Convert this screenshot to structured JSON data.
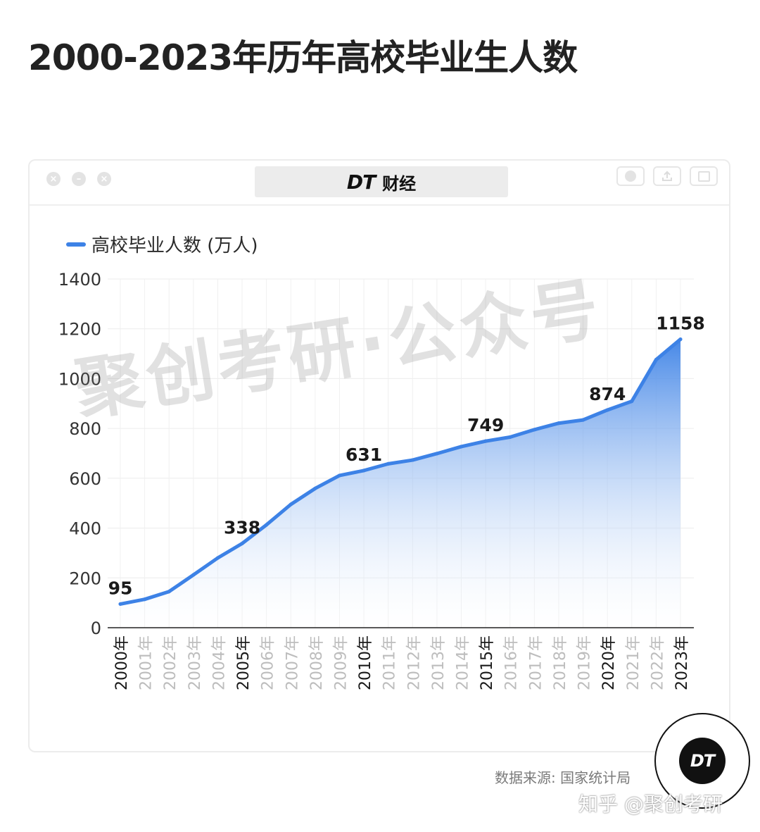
{
  "title": "2000-2023年历年高校毕业生人数",
  "window": {
    "brand_mark": "DT",
    "brand_name": "财经",
    "close_glyph": "×",
    "minimize_glyph": "–",
    "maximize_glyph": "×",
    "icons": [
      "record-icon",
      "share-icon",
      "window-icon"
    ]
  },
  "watermark": "聚创考研·公众号",
  "source_text": "数据来源: 国家统计局",
  "badge_text": "DT",
  "handle_text": "知乎 @聚创考研",
  "colors": {
    "line": "#3d82e6",
    "fill_top": "#3d82e6",
    "fill_bottom": "#ffffff",
    "grid": "#ececec"
  },
  "chart_data": {
    "type": "area",
    "title": "",
    "xlabel": "",
    "ylabel": "",
    "categories": [
      "2000年",
      "2001年",
      "2002年",
      "2003年",
      "2004年",
      "2005年",
      "2006年",
      "2007年",
      "2008年",
      "2009年",
      "2010年",
      "2011年",
      "2012年",
      "2013年",
      "2014年",
      "2015年",
      "2016年",
      "2017年",
      "2018年",
      "2019年",
      "2020年",
      "2021年",
      "2022年",
      "2023年"
    ],
    "highlight_categories": [
      "2000年",
      "2005年",
      "2010年",
      "2015年",
      "2020年",
      "2023年"
    ],
    "series": [
      {
        "name": "高校毕业人数 (万人)",
        "values": [
          95,
          114,
          145,
          212,
          280,
          338,
          413,
          495,
          559,
          611,
          631,
          658,
          673,
          699,
          727,
          749,
          765,
          795,
          821,
          834,
          874,
          909,
          1076,
          1158
        ]
      }
    ],
    "data_labels": [
      {
        "category": "2000年",
        "value": 95,
        "text": "95"
      },
      {
        "category": "2005年",
        "value": 338,
        "text": "338"
      },
      {
        "category": "2010年",
        "value": 631,
        "text": "631"
      },
      {
        "category": "2015年",
        "value": 749,
        "text": "749"
      },
      {
        "category": "2020年",
        "value": 874,
        "text": "874"
      },
      {
        "category": "2023年",
        "value": 1158,
        "text": "1158"
      }
    ],
    "ylim": [
      0,
      1400
    ],
    "yticks": [
      0,
      200,
      400,
      600,
      800,
      1000,
      1200,
      1400
    ],
    "ytick_labels": [
      "0",
      "200",
      "400",
      "600",
      "800",
      "1000",
      "1200",
      "1400"
    ],
    "grid": true,
    "legend": "top-left"
  }
}
